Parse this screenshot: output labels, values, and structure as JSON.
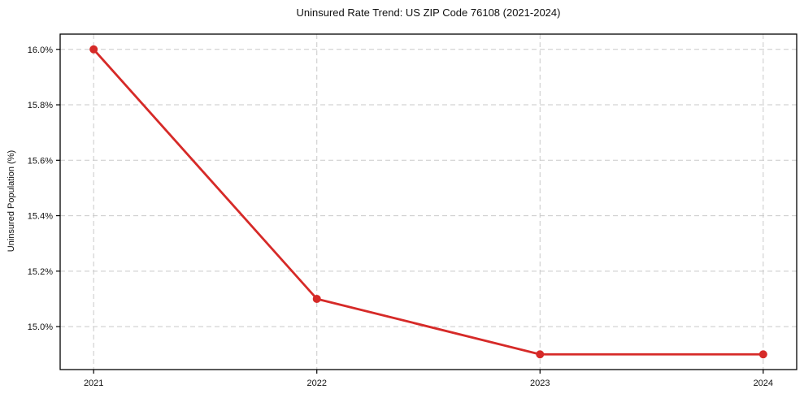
{
  "chart_data": {
    "type": "line",
    "title": "Uninsured Rate Trend: US ZIP Code 76108 (2021-2024)",
    "xlabel": "",
    "ylabel": "Uninsured Population (%)",
    "x": [
      2021,
      2022,
      2023,
      2024
    ],
    "x_tick_labels": [
      "2021",
      "2022",
      "2023",
      "2024"
    ],
    "values": [
      16.0,
      15.1,
      14.9,
      14.9
    ],
    "y_ticks": [
      15.0,
      15.2,
      15.4,
      15.6,
      15.8,
      16.0
    ],
    "y_tick_labels": [
      "15.0%",
      "15.2%",
      "15.4%",
      "15.6%",
      "15.8%",
      "16.0%"
    ],
    "ylim": [
      14.845,
      16.055
    ],
    "xlim": [
      2020.85,
      2024.15
    ],
    "grid": true,
    "grid_line_style": "dashed",
    "legend_position": "none",
    "line_color": "#d62a28",
    "marker": "circle",
    "marker_size_px": 5,
    "grid_color": "#c9c9c9",
    "axis_color": "#000000",
    "text_color": "#111111"
  }
}
